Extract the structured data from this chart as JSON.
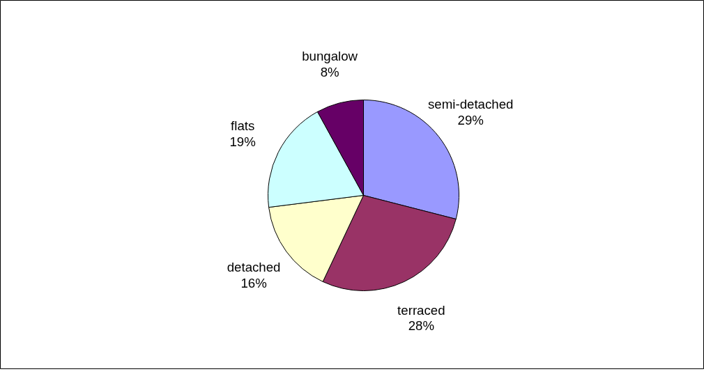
{
  "chart_data": {
    "type": "pie",
    "categories": [
      "semi-detached",
      "terraced",
      "detached",
      "flats",
      "bungalow"
    ],
    "values": [
      29,
      28,
      16,
      19,
      8
    ],
    "value_labels": [
      "29%",
      "28%",
      "16%",
      "19%",
      "8%"
    ],
    "colors": [
      "#9999ff",
      "#993366",
      "#ffffcc",
      "#ccffff",
      "#660066"
    ],
    "legend": false
  }
}
